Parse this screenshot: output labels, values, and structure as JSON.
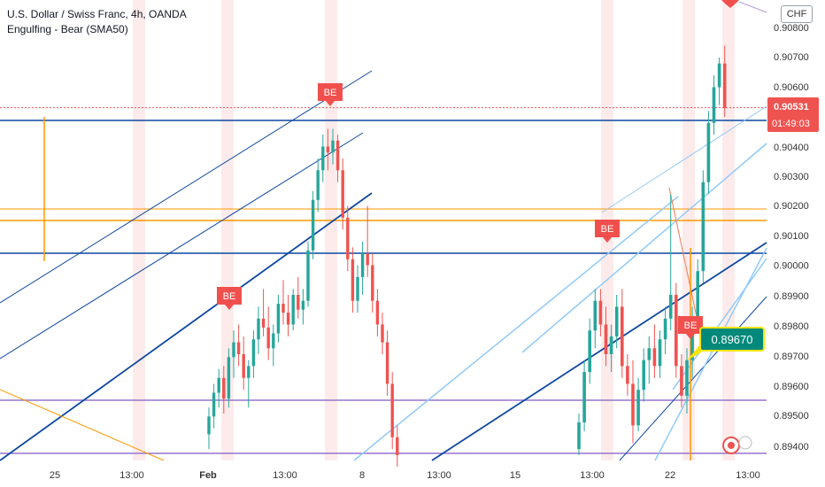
{
  "header": {
    "symbol_line": "U.S. Dollar / Swiss Franc, 4h, OANDA",
    "indicator_line": "Engulfing - Bear (SMA50)",
    "currency": "CHF"
  },
  "price_axis": {
    "ticks": [
      "0.90800",
      "0.90700",
      "0.90600",
      "0.90400",
      "0.90300",
      "0.90200",
      "0.90100",
      "0.90000",
      "0.89900",
      "0.89800",
      "0.89700",
      "0.89600",
      "0.89500",
      "0.89400"
    ],
    "current_price": "0.90531",
    "countdown": "01:49:03"
  },
  "time_axis": {
    "labels": [
      "25",
      "13:00",
      "Feb",
      "13:00",
      "8",
      "13:00",
      "15",
      "13:00",
      "22",
      "13:00"
    ]
  },
  "markers": {
    "be_label": "BE",
    "callout_price": "0.89670"
  },
  "colors": {
    "bull": "#26a69a",
    "bear": "#ef5350",
    "navy_line": "#0d47a1",
    "orange_line": "#ff9800",
    "purple_line": "#9575cd",
    "light_blue_line": "#90caf9",
    "callout_bg": "#00897b",
    "callout_border": "#f9e400",
    "marker_bg": "#f0504d"
  },
  "chart_data": {
    "type": "candlestick",
    "title": "U.S. Dollar / Swiss Franc, 4h, OANDA",
    "ylim": [
      0.8936,
      0.9084
    ],
    "x_ticks": [
      "25",
      "13:00",
      "Feb",
      "13:00",
      "8",
      "13:00",
      "15",
      "13:00",
      "22",
      "13:00"
    ],
    "candle_series_a": [
      {
        "o": 0.8943,
        "h": 0.8952,
        "l": 0.8938,
        "c": 0.8949
      },
      {
        "o": 0.8949,
        "h": 0.896,
        "l": 0.8945,
        "c": 0.8957
      },
      {
        "o": 0.8957,
        "h": 0.8965,
        "l": 0.8952,
        "c": 0.8962
      },
      {
        "o": 0.8962,
        "h": 0.8966,
        "l": 0.895,
        "c": 0.8955
      },
      {
        "o": 0.8955,
        "h": 0.8972,
        "l": 0.8952,
        "c": 0.8969
      },
      {
        "o": 0.8969,
        "h": 0.8978,
        "l": 0.8962,
        "c": 0.8974
      },
      {
        "o": 0.8974,
        "h": 0.898,
        "l": 0.8966,
        "c": 0.897
      },
      {
        "o": 0.897,
        "h": 0.8976,
        "l": 0.8958,
        "c": 0.8962
      },
      {
        "o": 0.8962,
        "h": 0.8968,
        "l": 0.8952,
        "c": 0.8966
      },
      {
        "o": 0.8966,
        "h": 0.8978,
        "l": 0.8962,
        "c": 0.8975
      },
      {
        "o": 0.8975,
        "h": 0.8986,
        "l": 0.897,
        "c": 0.8982
      },
      {
        "o": 0.8982,
        "h": 0.8992,
        "l": 0.8976,
        "c": 0.8979
      },
      {
        "o": 0.8979,
        "h": 0.8986,
        "l": 0.8968,
        "c": 0.8972
      },
      {
        "o": 0.8972,
        "h": 0.898,
        "l": 0.8966,
        "c": 0.8977
      },
      {
        "o": 0.8977,
        "h": 0.899,
        "l": 0.8974,
        "c": 0.8987
      },
      {
        "o": 0.8987,
        "h": 0.8995,
        "l": 0.898,
        "c": 0.8984
      },
      {
        "o": 0.8984,
        "h": 0.899,
        "l": 0.8976,
        "c": 0.898
      },
      {
        "o": 0.898,
        "h": 0.8992,
        "l": 0.8978,
        "c": 0.899
      },
      {
        "o": 0.899,
        "h": 0.8996,
        "l": 0.8982,
        "c": 0.8985
      },
      {
        "o": 0.8985,
        "h": 0.8992,
        "l": 0.898,
        "c": 0.8988
      },
      {
        "o": 0.8988,
        "h": 0.9008,
        "l": 0.8986,
        "c": 0.9005
      },
      {
        "o": 0.9005,
        "h": 0.9025,
        "l": 0.9002,
        "c": 0.9022
      },
      {
        "o": 0.9022,
        "h": 0.9036,
        "l": 0.9018,
        "c": 0.9032
      },
      {
        "o": 0.9032,
        "h": 0.9044,
        "l": 0.9028,
        "c": 0.904
      },
      {
        "o": 0.904,
        "h": 0.9046,
        "l": 0.9032,
        "c": 0.9038
      },
      {
        "o": 0.9038,
        "h": 0.9046,
        "l": 0.9034,
        "c": 0.9042
      },
      {
        "o": 0.9042,
        "h": 0.9044,
        "l": 0.9028,
        "c": 0.9032
      },
      {
        "o": 0.9032,
        "h": 0.9036,
        "l": 0.9012,
        "c": 0.9016
      },
      {
        "o": 0.9016,
        "h": 0.902,
        "l": 0.8998,
        "c": 0.9002
      },
      {
        "o": 0.9002,
        "h": 0.9006,
        "l": 0.8984,
        "c": 0.8988
      },
      {
        "o": 0.8988,
        "h": 0.9,
        "l": 0.8984,
        "c": 0.8996
      },
      {
        "o": 0.8996,
        "h": 0.9008,
        "l": 0.899,
        "c": 0.9004
      },
      {
        "o": 0.9004,
        "h": 0.902,
        "l": 0.8996,
        "c": 0.9
      },
      {
        "o": 0.9,
        "h": 0.9004,
        "l": 0.8984,
        "c": 0.8988
      },
      {
        "o": 0.8988,
        "h": 0.8992,
        "l": 0.8976,
        "c": 0.898
      },
      {
        "o": 0.898,
        "h": 0.8984,
        "l": 0.897,
        "c": 0.8974
      },
      {
        "o": 0.8974,
        "h": 0.8978,
        "l": 0.8956,
        "c": 0.896
      },
      {
        "o": 0.896,
        "h": 0.8964,
        "l": 0.8938,
        "c": 0.8942
      },
      {
        "o": 0.8942,
        "h": 0.8946,
        "l": 0.8932,
        "c": 0.8936
      }
    ],
    "candle_series_b": [
      {
        "o": 0.8938,
        "h": 0.895,
        "l": 0.8936,
        "c": 0.8947
      },
      {
        "o": 0.8947,
        "h": 0.8968,
        "l": 0.8944,
        "c": 0.8964
      },
      {
        "o": 0.8964,
        "h": 0.8982,
        "l": 0.896,
        "c": 0.8978
      },
      {
        "o": 0.8978,
        "h": 0.8992,
        "l": 0.8972,
        "c": 0.8988
      },
      {
        "o": 0.8988,
        "h": 0.8992,
        "l": 0.8976,
        "c": 0.898
      },
      {
        "o": 0.898,
        "h": 0.8986,
        "l": 0.8966,
        "c": 0.897
      },
      {
        "o": 0.897,
        "h": 0.898,
        "l": 0.8964,
        "c": 0.8976
      },
      {
        "o": 0.8976,
        "h": 0.899,
        "l": 0.8972,
        "c": 0.8986
      },
      {
        "o": 0.8986,
        "h": 0.8992,
        "l": 0.8962,
        "c": 0.8966
      },
      {
        "o": 0.8966,
        "h": 0.897,
        "l": 0.8956,
        "c": 0.896
      },
      {
        "o": 0.896,
        "h": 0.8968,
        "l": 0.894,
        "c": 0.8946
      },
      {
        "o": 0.8946,
        "h": 0.8962,
        "l": 0.8944,
        "c": 0.8958
      },
      {
        "o": 0.8958,
        "h": 0.8972,
        "l": 0.8954,
        "c": 0.8968
      },
      {
        "o": 0.8968,
        "h": 0.8976,
        "l": 0.896,
        "c": 0.8972
      },
      {
        "o": 0.8972,
        "h": 0.898,
        "l": 0.8962,
        "c": 0.8966
      },
      {
        "o": 0.8966,
        "h": 0.8978,
        "l": 0.8962,
        "c": 0.8975
      },
      {
        "o": 0.8975,
        "h": 0.8986,
        "l": 0.897,
        "c": 0.8982
      },
      {
        "o": 0.8982,
        "h": 0.9024,
        "l": 0.8978,
        "c": 0.899
      },
      {
        "o": 0.899,
        "h": 0.8994,
        "l": 0.8962,
        "c": 0.8966
      },
      {
        "o": 0.8966,
        "h": 0.897,
        "l": 0.8952,
        "c": 0.8956
      },
      {
        "o": 0.8956,
        "h": 0.8972,
        "l": 0.895,
        "c": 0.8968
      },
      {
        "o": 0.8968,
        "h": 0.8986,
        "l": 0.8962,
        "c": 0.8982
      },
      {
        "o": 0.8982,
        "h": 0.9002,
        "l": 0.8978,
        "c": 0.8998
      },
      {
        "o": 0.8998,
        "h": 0.9032,
        "l": 0.8994,
        "c": 0.9028
      },
      {
        "o": 0.9028,
        "h": 0.9052,
        "l": 0.9024,
        "c": 0.9048
      },
      {
        "o": 0.9048,
        "h": 0.9064,
        "l": 0.9044,
        "c": 0.906
      },
      {
        "o": 0.906,
        "h": 0.907,
        "l": 0.9054,
        "c": 0.9068
      },
      {
        "o": 0.9068,
        "h": 0.9074,
        "l": 0.905,
        "c": 0.9053
      }
    ]
  }
}
